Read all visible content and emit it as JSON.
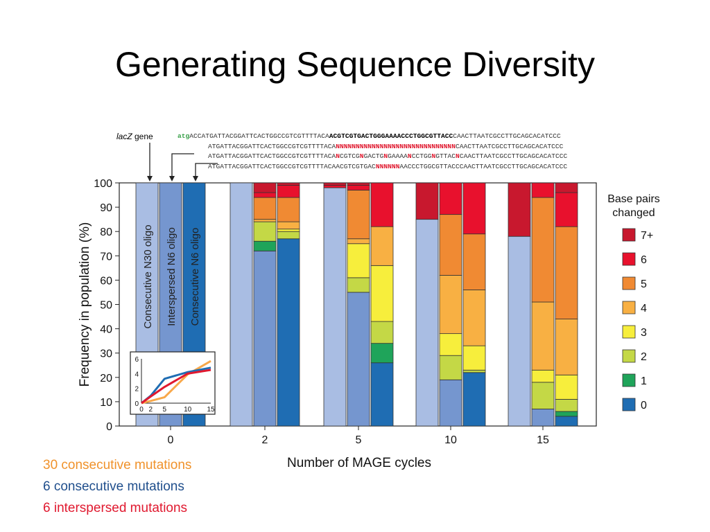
{
  "slide": {
    "title": "Generating Sequence Diversity"
  },
  "sequence_panel": {
    "gene_label_italic": "lacZ",
    "gene_label_rest": " gene",
    "atg": "atg",
    "row1_a": "ACCATGATTACGGATTCACTGGCCGTCGTTTTACA",
    "row1_b": "ACGTCGTGACTGGGAAAACCCTGGCGTTACC",
    "row1_c": "CAACTTAATCGCCTTGCAGCACATCCC",
    "row2_a": "ATGATTACGGATTCACTGGCCGTCGTTTTACA",
    "row2_b": "NNNNNNNNNNNNNNNNNNNNNNNNNNNNNN",
    "row2_c": "CAACTTAATCGCCTTGCAGCACATCCC",
    "row3_a": "ATGATTACGGATTCACTGGCCGTCGTTTTACA",
    "row3_b": "N",
    "row3_c": "CGTCG",
    "row3_d": "N",
    "row3_e": "GACTG",
    "row3_f": "N",
    "row3_g": "GAAAA",
    "row3_h": "N",
    "row3_i": "CCTGG",
    "row3_j": "N",
    "row3_k": "GTTAC",
    "row3_l": "N",
    "row3_m": "CAACTTAATCGCCTTGCAGCACATCCC",
    "row4_a": "ATGATTACGGATTCACTGGCCGTCGTTTTACAACGTCGTGAC",
    "row4_b": "NNNNNN",
    "row4_c": "AACCCTGGCGTTACCCAACTTAATCGCCTTGCAGCACATCCC"
  },
  "notes": {
    "n1": "30 consecutive mutations",
    "n2": "6 consecutive mutations",
    "n3": "6 interspersed mutations",
    "c1": "#f0922b",
    "c2": "#1f4e8c",
    "c3": "#e0192f"
  },
  "chart_data": {
    "type": "bar",
    "stacked": true,
    "ylabel": "Frequency in population (%)",
    "xlabel": "Number of MAGE cycles",
    "ylim": [
      0,
      100
    ],
    "yticks": [
      0,
      10,
      20,
      30,
      40,
      50,
      60,
      70,
      80,
      90,
      100
    ],
    "grid": false,
    "categories": [
      "0",
      "2",
      "5",
      "10",
      "15"
    ],
    "oligos": [
      "Consecutive N30 oligo",
      "Interspersed N6 oligo",
      "Consecutive N6 oligo"
    ],
    "legend_title": "Base pairs changed",
    "legend_placement": "right",
    "legend": [
      {
        "label": "7+",
        "color": "#c8182e"
      },
      {
        "label": "6",
        "color": "#e8112d"
      },
      {
        "label": "5",
        "color": "#f08a33"
      },
      {
        "label": "4",
        "color": "#f8b043"
      },
      {
        "label": "3",
        "color": "#f7ee3c"
      },
      {
        "label": "2",
        "color": "#c4d846"
      },
      {
        "label": "1",
        "color": "#1fa45a"
      },
      {
        "label": "0",
        "color": "#1f6db3"
      }
    ],
    "bars": [
      {
        "cycle": "0",
        "oligo": "Consecutive N30 oligo",
        "segments": [
          100,
          0,
          0,
          0,
          0,
          0,
          0,
          0
        ]
      },
      {
        "cycle": "0",
        "oligo": "Interspersed N6 oligo",
        "segments": [
          100,
          0,
          0,
          0,
          0,
          0,
          0,
          0
        ]
      },
      {
        "cycle": "0",
        "oligo": "Consecutive N6 oligo",
        "segments": [
          100,
          0,
          0,
          0,
          0,
          0,
          0,
          0
        ]
      },
      {
        "cycle": "2",
        "oligo": "Consecutive N30 oligo",
        "segments": [
          100,
          0,
          0,
          0,
          0,
          0,
          0,
          0
        ]
      },
      {
        "cycle": "2",
        "oligo": "Interspersed N6 oligo",
        "segments": [
          72,
          4,
          8,
          0,
          1,
          9,
          2,
          4
        ]
      },
      {
        "cycle": "2",
        "oligo": "Consecutive N6 oligo",
        "segments": [
          77,
          0,
          3,
          1,
          3,
          10,
          5,
          1
        ]
      },
      {
        "cycle": "5",
        "oligo": "Consecutive N30 oligo",
        "segments": [
          98,
          0,
          0,
          0,
          0,
          0,
          1,
          1
        ]
      },
      {
        "cycle": "5",
        "oligo": "Interspersed N6 oligo",
        "segments": [
          55,
          0,
          6,
          14,
          2,
          20,
          2,
          1
        ]
      },
      {
        "cycle": "5",
        "oligo": "Consecutive N6 oligo",
        "segments": [
          26,
          8,
          9,
          23,
          16,
          0,
          18,
          0
        ]
      },
      {
        "cycle": "10",
        "oligo": "Consecutive N30 oligo",
        "segments": [
          85,
          0,
          0,
          0,
          0,
          0,
          0,
          15
        ]
      },
      {
        "cycle": "10",
        "oligo": "Interspersed N6 oligo",
        "segments": [
          19,
          0,
          10,
          9,
          24,
          25,
          13,
          0
        ]
      },
      {
        "cycle": "10",
        "oligo": "Consecutive N6 oligo",
        "segments": [
          22,
          0,
          1,
          10,
          23,
          23,
          21,
          0
        ]
      },
      {
        "cycle": "15",
        "oligo": "Consecutive N30 oligo",
        "segments": [
          78,
          0,
          0,
          0,
          0,
          0,
          0,
          22
        ]
      },
      {
        "cycle": "15",
        "oligo": "Interspersed N6 oligo",
        "segments": [
          7,
          0,
          11,
          5,
          28,
          43,
          6,
          0
        ]
      },
      {
        "cycle": "15",
        "oligo": "Consecutive N6 oligo",
        "segments": [
          4,
          2,
          5,
          10,
          23,
          38,
          14,
          4
        ]
      }
    ],
    "inset": {
      "type": "line",
      "x": [
        0,
        2,
        5,
        10,
        15
      ],
      "xticks": [
        0,
        2,
        5,
        10,
        15
      ],
      "yticks": [
        0,
        2,
        4,
        6
      ],
      "ylim": [
        0,
        6
      ],
      "series": [
        {
          "color": "#f8a84a",
          "values": [
            0,
            0.3,
            0.8,
            3.9,
            5.7
          ]
        },
        {
          "color": "#1f6db3",
          "values": [
            0,
            1.0,
            3.3,
            4.2,
            4.8
          ]
        },
        {
          "color": "#e0192f",
          "values": [
            0,
            0.9,
            2.2,
            4.0,
            4.5
          ]
        }
      ]
    }
  }
}
